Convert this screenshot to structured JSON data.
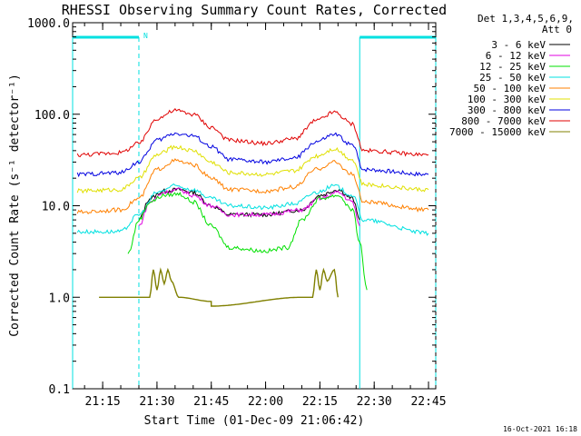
{
  "chart_data": {
    "type": "line",
    "title": "RHESSI Observing Summary Count Rates, Corrected",
    "xlabel": "Start Time (01-Dec-09 21:06:42)",
    "ylabel": "Corrected Count Rate (s⁻¹ detector⁻¹)",
    "yscale": "log",
    "ylim": [
      0.1,
      1000
    ],
    "xlim": [
      "21:06:42",
      "22:47:00"
    ],
    "x_ticks": [
      "21:15",
      "21:30",
      "21:45",
      "22:00",
      "22:15",
      "22:30",
      "22:45"
    ],
    "y_ticks": [
      "1000.0",
      "100.0",
      "10.0",
      "1.0",
      "0.1"
    ],
    "legend_header": [
      "Det 1,3,4,5,6,9,",
      "Att 0"
    ],
    "timestamp": "16-Oct-2021 16:18",
    "night_marker_label": "N",
    "grid": false,
    "legend_position": "top-right",
    "night_periods": [
      [
        "21:06:42",
        "21:25:00"
      ],
      [
        "22:26:00",
        "22:47:00"
      ]
    ],
    "series": [
      {
        "name": "3 - 6 keV",
        "color": "#000000",
        "x": [
          "21:25",
          "21:28",
          "21:32",
          "21:36",
          "21:40",
          "21:45",
          "21:50",
          "22:00",
          "22:10",
          "22:15",
          "22:20",
          "22:24",
          "22:26"
        ],
        "values": [
          7,
          12,
          14.5,
          15,
          14,
          10,
          8,
          8,
          9,
          13,
          15,
          12,
          7
        ]
      },
      {
        "name": "6 - 12 keV",
        "color": "#e000e0",
        "x": [
          "21:25",
          "21:28",
          "21:32",
          "21:36",
          "21:40",
          "21:45",
          "21:50",
          "22:00",
          "22:10",
          "22:15",
          "22:20",
          "22:24",
          "22:26"
        ],
        "values": [
          6,
          11,
          14,
          15,
          13,
          10,
          8,
          8,
          9,
          12,
          14,
          11,
          6
        ]
      },
      {
        "name": "12 - 25 keV",
        "color": "#00e000",
        "x": [
          "21:22",
          "21:25",
          "21:28",
          "21:32",
          "21:36",
          "21:40",
          "21:45",
          "21:50",
          "22:00",
          "22:06",
          "22:10",
          "22:15",
          "22:20",
          "22:24",
          "22:26",
          "22:28"
        ],
        "values": [
          3,
          7,
          11,
          13,
          13.5,
          11,
          6,
          3.5,
          3.2,
          3.5,
          7,
          12,
          13,
          9,
          4,
          1.2
        ]
      },
      {
        "name": "25 - 50 keV",
        "color": "#00e0e0",
        "x": [
          "21:08",
          "21:20",
          "21:25",
          "21:30",
          "21:35",
          "21:40",
          "21:45",
          "21:50",
          "22:00",
          "22:08",
          "22:14",
          "22:19",
          "22:24",
          "22:27",
          "22:45"
        ],
        "values": [
          5.2,
          5.2,
          8,
          14,
          16.5,
          15,
          12,
          10,
          9.5,
          10.5,
          14,
          16.5,
          13,
          7,
          5
        ]
      },
      {
        "name": "50 - 100 keV",
        "color": "#ff8000",
        "x": [
          "21:08",
          "21:20",
          "21:25",
          "21:30",
          "21:35",
          "21:40",
          "21:45",
          "21:50",
          "22:00",
          "22:08",
          "22:14",
          "22:19",
          "22:24",
          "22:27",
          "22:45"
        ],
        "values": [
          8.5,
          9,
          12,
          25,
          31,
          28,
          20,
          15,
          14.5,
          16,
          25,
          30,
          22,
          11,
          9
        ]
      },
      {
        "name": "100 - 300 keV",
        "color": "#e0e000",
        "x": [
          "21:08",
          "21:20",
          "21:25",
          "21:30",
          "21:35",
          "21:40",
          "21:45",
          "21:50",
          "22:00",
          "22:08",
          "22:14",
          "22:19",
          "22:24",
          "22:27",
          "22:45"
        ],
        "values": [
          14.5,
          15,
          20,
          36,
          44,
          40,
          30,
          23,
          22,
          24,
          35,
          42,
          32,
          17,
          15
        ]
      },
      {
        "name": "300 - 800 keV",
        "color": "#0000e0",
        "x": [
          "21:08",
          "21:20",
          "21:25",
          "21:30",
          "21:35",
          "21:40",
          "21:45",
          "21:50",
          "22:00",
          "22:08",
          "22:14",
          "22:19",
          "22:24",
          "22:27",
          "22:45"
        ],
        "values": [
          22,
          23,
          30,
          52,
          62,
          58,
          44,
          32,
          30,
          33,
          50,
          60,
          46,
          25,
          22
        ]
      },
      {
        "name": "800 - 7000 keV",
        "color": "#e00000",
        "x": [
          "21:08",
          "21:20",
          "21:25",
          "21:30",
          "21:35",
          "21:40",
          "21:45",
          "21:50",
          "22:00",
          "22:08",
          "22:14",
          "22:19",
          "22:24",
          "22:27",
          "22:45"
        ],
        "values": [
          36,
          38,
          48,
          90,
          110,
          100,
          72,
          52,
          48,
          54,
          85,
          105,
          78,
          40,
          36
        ]
      },
      {
        "name": "7000 - 15000 keV",
        "color": "#808000",
        "x": [
          "21:14",
          "21:24",
          "21:26",
          "21:28",
          "21:29",
          "21:30",
          "21:31",
          "21:32",
          "21:33",
          "21:34",
          "21:36",
          "21:45",
          "21:45",
          "22:10",
          "22:13",
          "22:14",
          "22:15",
          "22:16",
          "22:17",
          "22:19",
          "22:20"
        ],
        "values": [
          1,
          1,
          1,
          1,
          2,
          1.2,
          2,
          1.4,
          2,
          1.5,
          1,
          0.9,
          0.8,
          1,
          1,
          2,
          1.2,
          2,
          1.5,
          2,
          1
        ]
      }
    ]
  }
}
